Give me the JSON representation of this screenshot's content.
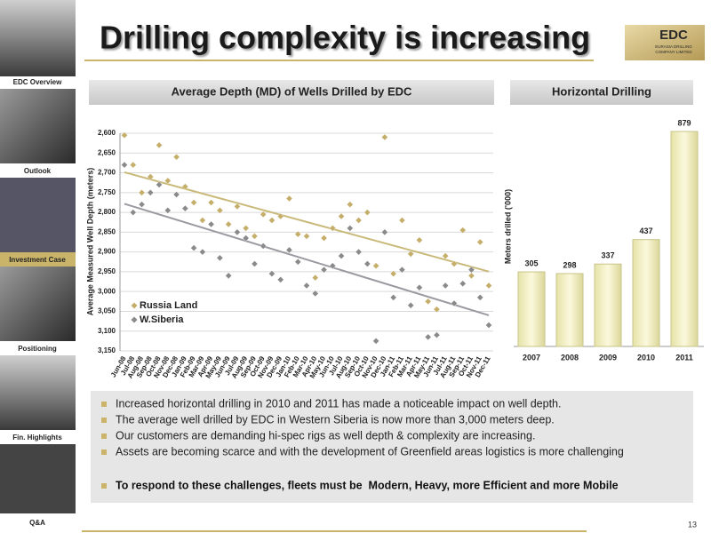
{
  "header": {
    "title": "Drilling complexity is increasing",
    "logo": {
      "name": "EDC",
      "tagline_1": "EURASIA DRILLING",
      "tagline_2": "COMPANY LIMITED"
    }
  },
  "sidebar": [
    "EDC Overview",
    "Outlook",
    "Investment Case",
    "Positioning",
    "Fin. Highlights",
    "Q&A"
  ],
  "chart_data": [
    {
      "type": "scatter",
      "title": "Average Depth (MD) of Wells Drilled by EDC",
      "y_label": "Average Measured Well Depth (meters)",
      "categories": [
        "Jun-08",
        "Jul-08",
        "Aug-08",
        "Sep-08",
        "Oct-08",
        "Nov-08",
        "Dec-08",
        "Jan-09",
        "Feb-09",
        "Mar-09",
        "Apr-09",
        "May-09",
        "Jun-09",
        "Jul-09",
        "Aug-09",
        "Sep-09",
        "Oct-09",
        "Nov-09",
        "Dec-09",
        "Jan-10",
        "Feb-10",
        "Mar-10",
        "Apr-10",
        "May-10",
        "Jun-10",
        "Jul-10",
        "Aug-10",
        "Sep-10",
        "Oct-10",
        "Nov-10",
        "Dec-10",
        "Jan-11",
        "Feb-11",
        "Mar-11",
        "Apr-11",
        "May-11",
        "Jun-11",
        "Jul-11",
        "Aug-11",
        "Sep-11",
        "Oct-11",
        "Nov-11",
        "Dec-11"
      ],
      "series": [
        {
          "name": "Russia Land",
          "color": "#c4ae6a",
          "trend_color": "#c9b978",
          "values": [
            2605,
            2680,
            2750,
            2710,
            2630,
            2720,
            2660,
            2735,
            2775,
            2820,
            2775,
            2795,
            2830,
            2785,
            2840,
            2860,
            2805,
            2820,
            2810,
            2765,
            2855,
            2860,
            2965,
            2865,
            2840,
            2810,
            2780,
            2820,
            2800,
            2935,
            2610,
            2955,
            2820,
            2905,
            2870,
            3025,
            3045,
            2910,
            2930,
            2845,
            2960,
            2875,
            2985
          ]
        },
        {
          "name": "W.Siberia",
          "color": "#8a8a8a",
          "trend_color": "#9a9aa2",
          "values": [
            2680,
            2800,
            2780,
            2750,
            2730,
            2795,
            2755,
            2790,
            2890,
            2900,
            2830,
            2915,
            2960,
            2850,
            2865,
            2930,
            2885,
            2955,
            2970,
            2895,
            2925,
            2985,
            3005,
            2945,
            2935,
            2910,
            2840,
            2900,
            2930,
            3125,
            2850,
            3015,
            2945,
            3035,
            2990,
            3115,
            3110,
            2985,
            3030,
            2980,
            2945,
            3015,
            3085
          ]
        }
      ],
      "ylim": [
        2600,
        3150
      ],
      "invert_y": true,
      "grid": true,
      "trendline": true,
      "yticks": [
        {
          "value": 2600,
          "label": "2,600"
        },
        {
          "value": 2650,
          "label": "2,650"
        },
        {
          "value": 2700,
          "label": "2,700"
        },
        {
          "value": 2750,
          "label": "2,750"
        },
        {
          "value": 2800,
          "label": "2,800"
        },
        {
          "value": 2850,
          "label": "2,850"
        },
        {
          "value": 2900,
          "label": "2,900"
        },
        {
          "value": 2950,
          "label": "2,950"
        },
        {
          "value": 3000,
          "label": "3,000"
        },
        {
          "value": 3050,
          "label": "3,050"
        },
        {
          "value": 3100,
          "label": "3,100"
        },
        {
          "value": 3150,
          "label": "3,150"
        }
      ]
    },
    {
      "type": "bar",
      "title": "Horizontal Drilling",
      "y_label": "Meters drilled ('000)",
      "categories": [
        "2007",
        "2008",
        "2009",
        "2010",
        "2011"
      ],
      "values": [
        305,
        298,
        337,
        437,
        879
      ],
      "color": "#f4f1c4"
    }
  ],
  "bullets": [
    "Increased horizontal drilling in 2010 and 2011 has made a noticeable impact on well depth.",
    "The average well drilled by EDC in Western Siberia is now more than 3,000 meters deep.",
    "Our customers are demanding hi-spec rigs as well depth & complexity are increasing.",
    "Assets are becoming scarce and with the development of Greenfield areas logistics is more challenging"
  ],
  "callout": "To respond to these challenges, fleets must be  Modern, Heavy, more Efficient and more Mobile",
  "page_number": "13"
}
